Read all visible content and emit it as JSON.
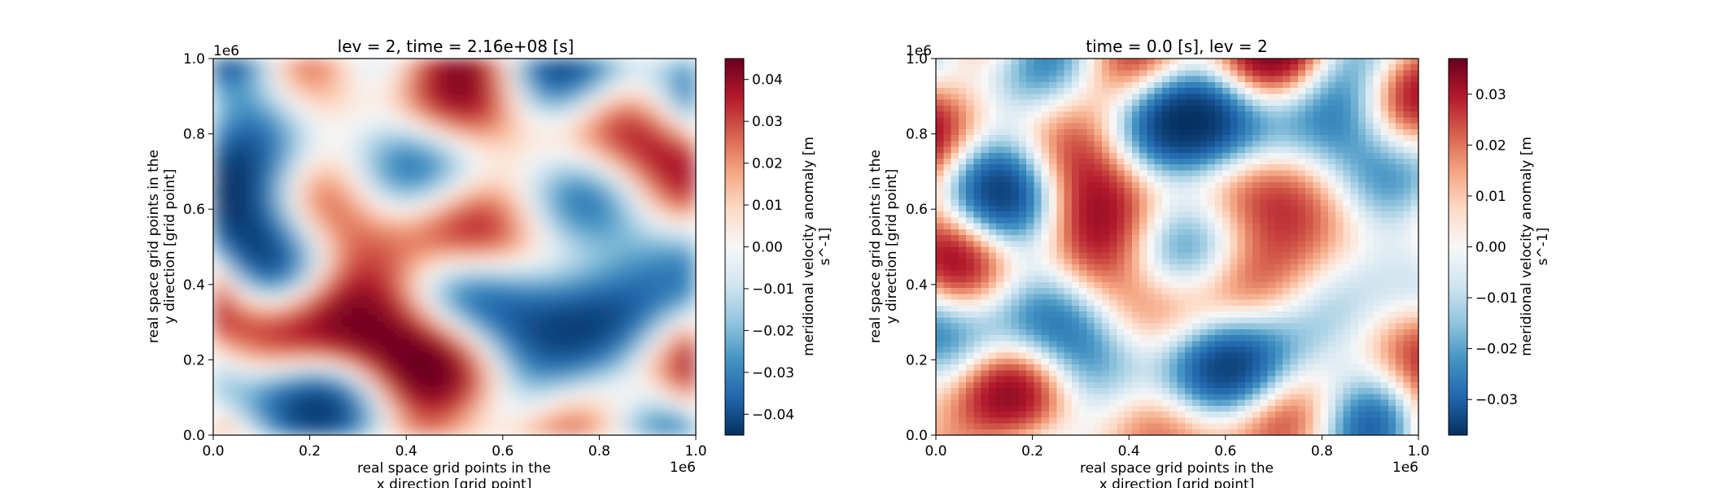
{
  "chart_data": [
    {
      "type": "heatmap",
      "title": "lev = 2, time = 2.16e+08 [s]",
      "xlabel_line1": "real space grid points in the",
      "xlabel_line2": "x direction [grid point]",
      "ylabel_line1": "real space grid points in the",
      "ylabel_line2": "y direction [grid point]",
      "x_offset_label": "1e6",
      "y_offset_label": "1e6",
      "xlim": [
        0,
        1.0
      ],
      "ylim": [
        0,
        1.0
      ],
      "x_ticks": [
        "0.0",
        "0.2",
        "0.4",
        "0.6",
        "0.8",
        "1.0"
      ],
      "y_ticks": [
        "0.0",
        "0.2",
        "0.4",
        "0.6",
        "0.8",
        "1.0"
      ],
      "colormap": "RdBu_r",
      "smooth": true,
      "color_range": [
        -0.045,
        0.045
      ],
      "colorbar_label_line1": "meridional velocity anomaly [m",
      "colorbar_label_line2": "s^-1]",
      "colorbar_ticks": [
        "0.04",
        "0.03",
        "0.02",
        "0.01",
        "0.00",
        "−0.01",
        "−0.02",
        "−0.03",
        "−0.04"
      ],
      "colorbar_tick_values": [
        0.04,
        0.03,
        0.02,
        0.01,
        0.0,
        -0.01,
        -0.02,
        -0.03,
        -0.04
      ],
      "grid": false
    },
    {
      "type": "heatmap",
      "title": "time = 0.0 [s], lev = 2",
      "xlabel_line1": "real space grid points in the",
      "xlabel_line2": "x direction [grid point]",
      "ylabel_line1": "real space grid points in the",
      "ylabel_line2": "y direction [grid point]",
      "x_offset_label": "1e6",
      "y_offset_label": "1e6",
      "xlim": [
        0,
        1.0
      ],
      "ylim": [
        0,
        1.0
      ],
      "x_ticks": [
        "0.0",
        "0.2",
        "0.4",
        "0.6",
        "0.8",
        "1.0"
      ],
      "y_ticks": [
        "0.0",
        "0.2",
        "0.4",
        "0.6",
        "0.8",
        "1.0"
      ],
      "colormap": "RdBu_r",
      "smooth": false,
      "color_range": [
        -0.037,
        0.037
      ],
      "colorbar_label_line1": "meridional velocity anomaly [m",
      "colorbar_label_line2": "s^-1]",
      "colorbar_ticks": [
        "0.03",
        "0.02",
        "0.01",
        "0.00",
        "−0.01",
        "−0.02",
        "−0.03"
      ],
      "colorbar_tick_values": [
        0.03,
        0.02,
        0.01,
        0.0,
        -0.01,
        -0.02,
        -0.03
      ],
      "grid": false
    }
  ]
}
